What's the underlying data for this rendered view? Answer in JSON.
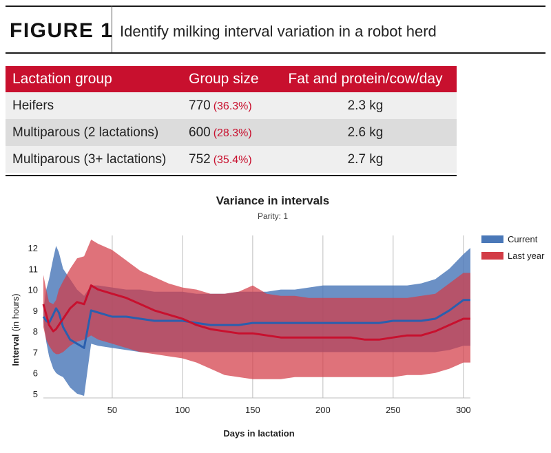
{
  "figure": {
    "label": "FIGURE 1",
    "title": "Identify milking interval variation in a robot herd"
  },
  "table": {
    "headers": [
      "Lactation group",
      "Group size",
      "Fat and protein/cow/day"
    ],
    "rows": [
      {
        "group": "Heifers",
        "size": "770",
        "pct": "(36.3%)",
        "fp": "2.3 kg"
      },
      {
        "group": "Multiparous (2 lactations)",
        "size": "600",
        "pct": "(28.3%)",
        "fp": "2.6 kg"
      },
      {
        "group": "Multiparous (3+ lactations)",
        "size": "752",
        "pct": "(35.4%)",
        "fp": "2.7 kg"
      }
    ]
  },
  "colors": {
    "accent": "#c8102e",
    "current": "#4a78b8",
    "last_year": "#d23c46"
  },
  "chart_data": {
    "type": "area",
    "title": "Variance in intervals",
    "subtitle": "Parity: 1",
    "xlabel": "Days in lactation",
    "ylabel": "Interval",
    "ylabel_unit": "(in hours)",
    "xlim": [
      1,
      305
    ],
    "ylim": [
      4.8,
      12.4
    ],
    "xticks": [
      50,
      100,
      150,
      200,
      250,
      300
    ],
    "yticks": [
      5,
      6,
      7,
      8,
      9,
      10,
      11,
      12
    ],
    "grid": "vertical",
    "legend_position": "top-right",
    "series": [
      {
        "name": "Current",
        "color": "#4a78b8",
        "x": [
          1,
          3,
          5,
          8,
          10,
          12,
          15,
          20,
          25,
          30,
          35,
          40,
          50,
          60,
          70,
          80,
          90,
          100,
          110,
          120,
          130,
          140,
          150,
          160,
          170,
          180,
          190,
          200,
          210,
          220,
          230,
          240,
          250,
          260,
          270,
          280,
          290,
          300,
          305
        ],
        "mean": [
          8.7,
          8.5,
          8.4,
          8.8,
          9.1,
          8.9,
          8.2,
          7.6,
          7.4,
          7.2,
          9.0,
          8.9,
          8.7,
          8.7,
          8.6,
          8.5,
          8.5,
          8.5,
          8.4,
          8.3,
          8.3,
          8.3,
          8.4,
          8.4,
          8.4,
          8.4,
          8.4,
          8.4,
          8.4,
          8.4,
          8.4,
          8.4,
          8.5,
          8.5,
          8.5,
          8.6,
          9.0,
          9.5,
          9.5
        ],
        "upper": [
          9.0,
          10.0,
          10.5,
          11.5,
          12.1,
          11.8,
          11.0,
          10.5,
          10.0,
          9.7,
          10.2,
          10.2,
          10.1,
          10.0,
          10.0,
          9.9,
          9.9,
          9.9,
          9.8,
          9.8,
          9.8,
          9.9,
          9.9,
          9.9,
          10.0,
          10.0,
          10.1,
          10.2,
          10.2,
          10.2,
          10.2,
          10.2,
          10.2,
          10.2,
          10.3,
          10.5,
          11.0,
          11.7,
          12.0
        ],
        "lower": [
          8.5,
          7.5,
          6.8,
          6.2,
          6.0,
          5.9,
          5.8,
          5.3,
          5.0,
          4.9,
          7.4,
          7.3,
          7.2,
          7.1,
          7.0,
          7.0,
          7.0,
          7.0,
          7.0,
          7.0,
          7.0,
          7.0,
          7.0,
          7.0,
          7.0,
          7.0,
          7.0,
          7.0,
          7.0,
          7.0,
          7.0,
          7.0,
          7.0,
          7.0,
          7.0,
          7.0,
          7.1,
          7.3,
          7.3
        ]
      },
      {
        "name": "Last year",
        "color": "#d23c46",
        "x": [
          1,
          3,
          5,
          8,
          10,
          12,
          15,
          20,
          25,
          30,
          35,
          40,
          50,
          60,
          70,
          80,
          90,
          100,
          110,
          120,
          130,
          140,
          150,
          160,
          170,
          180,
          190,
          200,
          210,
          220,
          230,
          240,
          250,
          260,
          270,
          280,
          290,
          300,
          305
        ],
        "mean": [
          9.3,
          8.8,
          8.3,
          8.0,
          8.1,
          8.3,
          8.6,
          9.1,
          9.4,
          9.3,
          10.2,
          10.0,
          9.8,
          9.6,
          9.3,
          9.0,
          8.8,
          8.6,
          8.3,
          8.1,
          8.0,
          7.9,
          7.9,
          7.8,
          7.7,
          7.7,
          7.7,
          7.7,
          7.7,
          7.7,
          7.6,
          7.6,
          7.7,
          7.8,
          7.8,
          8.0,
          8.3,
          8.6,
          8.6
        ],
        "upper": [
          10.7,
          10.0,
          9.4,
          9.3,
          9.5,
          10.0,
          10.4,
          11.0,
          11.5,
          11.6,
          12.4,
          12.2,
          11.9,
          11.4,
          10.9,
          10.6,
          10.3,
          10.1,
          10.0,
          9.8,
          9.8,
          9.9,
          10.2,
          9.8,
          9.7,
          9.7,
          9.6,
          9.6,
          9.6,
          9.6,
          9.6,
          9.6,
          9.6,
          9.6,
          9.7,
          9.8,
          10.3,
          10.8,
          10.8
        ],
        "lower": [
          8.2,
          7.6,
          7.3,
          7.0,
          6.9,
          6.9,
          7.0,
          7.3,
          7.5,
          7.6,
          7.8,
          7.6,
          7.4,
          7.2,
          7.0,
          6.9,
          6.8,
          6.7,
          6.5,
          6.2,
          5.9,
          5.8,
          5.7,
          5.7,
          5.7,
          5.8,
          5.8,
          5.8,
          5.8,
          5.8,
          5.8,
          5.8,
          5.8,
          5.9,
          5.9,
          6.0,
          6.2,
          6.5,
          6.5
        ]
      }
    ]
  }
}
